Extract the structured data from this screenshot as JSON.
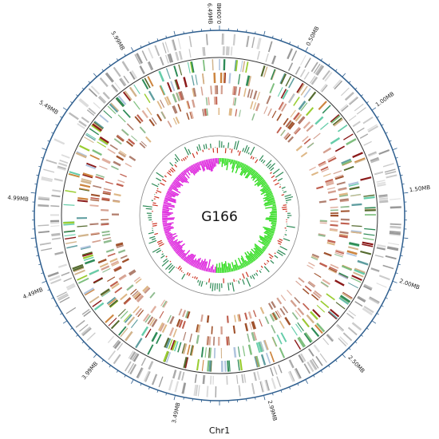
{
  "center_label": "G166",
  "axis_title": "Chr1",
  "position_labels": [
    "0.00MB",
    "0.50MB",
    "1.00MB",
    "1.50MB",
    "2.00MB",
    "2.50MB",
    "2.99MB",
    "3.49MB",
    "3.99MB",
    "4.49MB",
    "4.99MB",
    "5.49MB",
    "5.99MB",
    "6.49MB"
  ]
}
